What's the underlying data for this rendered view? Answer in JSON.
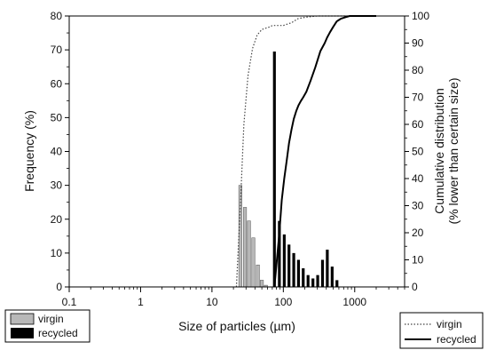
{
  "chart_data": {
    "type": "bar",
    "xlabel": "Size of particles (µm)",
    "ylabel_left": "Frequency (%)",
    "ylabel_right_line1": "Cumulative distribution",
    "ylabel_right_line2": "(% lower than certain size)",
    "xscale": "log",
    "xlim": [
      0.1,
      5000
    ],
    "ylim_left": [
      0,
      80
    ],
    "ylim_right": [
      0,
      100
    ],
    "x_ticks": [
      0.1,
      1,
      10,
      100,
      1000
    ],
    "x_tick_labels": [
      "0.1",
      "1",
      "10",
      "100",
      "1000"
    ],
    "y_left_ticks": [
      0,
      10,
      20,
      30,
      40,
      50,
      60,
      70,
      80
    ],
    "y_left_tick_labels": [
      "0",
      "10",
      "20",
      "30",
      "40",
      "50",
      "60",
      "70",
      "80"
    ],
    "y_right_ticks": [
      0,
      10,
      20,
      30,
      40,
      50,
      60,
      70,
      80,
      90,
      100
    ],
    "y_right_tick_labels": [
      "0",
      "10",
      "20",
      "30",
      "40",
      "50",
      "60",
      "70",
      "80",
      "90",
      "100"
    ],
    "bar_series": [
      {
        "name": "virgin",
        "color": "#b8b8b8",
        "x": [
          25,
          29,
          33,
          38,
          44,
          50,
          57
        ],
        "values": [
          30,
          23.5,
          19.5,
          14.5,
          6.5,
          2,
          0.5
        ]
      },
      {
        "name": "recycled",
        "color": "#000000",
        "x": [
          75,
          88,
          103,
          120,
          140,
          163,
          190,
          222,
          260,
          303,
          354,
          413,
          483,
          564
        ],
        "values": [
          69.5,
          19.5,
          15.5,
          12.5,
          10,
          8,
          5.5,
          3.5,
          2.5,
          3.5,
          8,
          11,
          6,
          2
        ]
      }
    ],
    "line_series": [
      {
        "name": "virgin",
        "style": "dotted",
        "color": "#444444",
        "x": [
          22,
          25,
          28,
          32,
          37,
          43,
          50,
          57,
          65,
          70,
          80,
          100,
          130,
          160,
          200,
          300,
          500,
          800,
          1000,
          2000
        ],
        "y": [
          0,
          30,
          60,
          78,
          88,
          93,
          95,
          95.5,
          96,
          96.5,
          96.5,
          96.5,
          97.5,
          99,
          99.5,
          100,
          100,
          100,
          100,
          100
        ]
      },
      {
        "name": "recycled",
        "style": "solid",
        "color": "#000000",
        "x": [
          75,
          80,
          88,
          95,
          103,
          112,
          120,
          130,
          140,
          152,
          163,
          175,
          190,
          210,
          240,
          280,
          330,
          380,
          410,
          450,
          500,
          560,
          640,
          730,
          850,
          1000,
          2000
        ],
        "y": [
          0,
          8,
          20,
          32,
          40,
          47,
          53,
          58,
          62,
          65,
          67,
          68.5,
          70,
          72,
          76,
          81,
          87,
          90,
          92,
          94,
          96,
          98,
          99,
          99.5,
          100,
          100,
          100
        ]
      }
    ],
    "legend_bars": [
      {
        "label": "virgin",
        "color": "#b8b8b8"
      },
      {
        "label": "recycled",
        "color": "#000000"
      }
    ],
    "legend_lines": [
      {
        "label": "virgin",
        "style": "dotted"
      },
      {
        "label": "recycled",
        "style": "solid"
      }
    ],
    "bar_legend_position": "bottom-left",
    "line_legend_position": "bottom-right",
    "grid": false
  }
}
